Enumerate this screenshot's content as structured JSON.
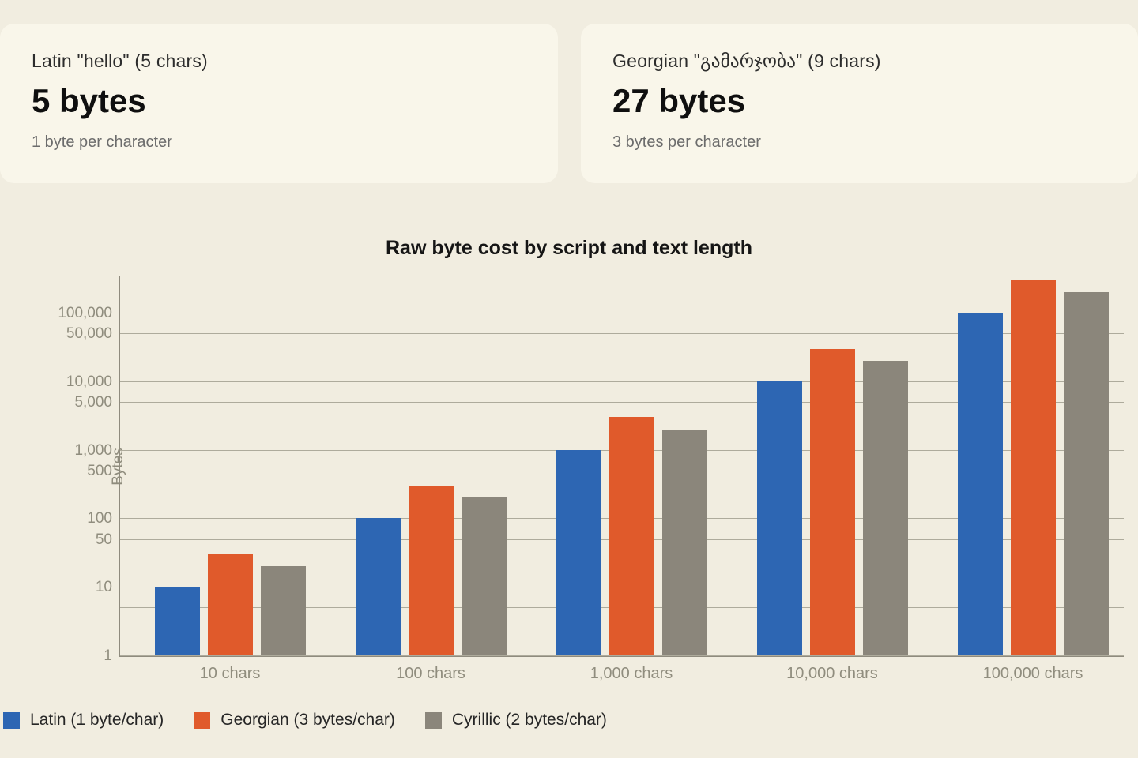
{
  "cards": [
    {
      "label": "Latin \"hello\" (5 chars)",
      "value": "5 bytes",
      "sub": "1 byte per character"
    },
    {
      "label": "Georgian \"გამარჯობა\" (9 chars)",
      "value": "27 bytes",
      "sub": "3 bytes per character"
    }
  ],
  "chart_data": {
    "type": "bar",
    "title": "Raw byte cost by script and text length",
    "xlabel": "",
    "ylabel": "Bytes",
    "yscale": "log",
    "ylim": [
      1,
      340000
    ],
    "grid": true,
    "legend_position": "bottom-left",
    "categories": [
      "10 chars",
      "100 chars",
      "1,000 chars",
      "10,000 chars",
      "100,000 chars"
    ],
    "series": [
      {
        "name": "Latin (1 byte/char)",
        "color": "#2d66b3",
        "values": [
          10,
          100,
          1000,
          10000,
          100000
        ]
      },
      {
        "name": "Georgian (3 bytes/char)",
        "color": "#e05a2b",
        "values": [
          30,
          300,
          3000,
          30000,
          300000
        ]
      },
      {
        "name": "Cyrillic (2 bytes/char)",
        "color": "#8b867b",
        "values": [
          20,
          200,
          2000,
          20000,
          200000
        ]
      }
    ],
    "yticks": [
      {
        "value": 1,
        "label": "1"
      },
      {
        "value": 5,
        "label": ""
      },
      {
        "value": 10,
        "label": "10"
      },
      {
        "value": 50,
        "label": "50"
      },
      {
        "value": 100,
        "label": "100"
      },
      {
        "value": 500,
        "label": "500"
      },
      {
        "value": 1000,
        "label": "1,000"
      },
      {
        "value": 5000,
        "label": "5,000"
      },
      {
        "value": 10000,
        "label": "10,000"
      },
      {
        "value": 50000,
        "label": "50,000"
      },
      {
        "value": 100000,
        "label": "100,000"
      }
    ]
  }
}
